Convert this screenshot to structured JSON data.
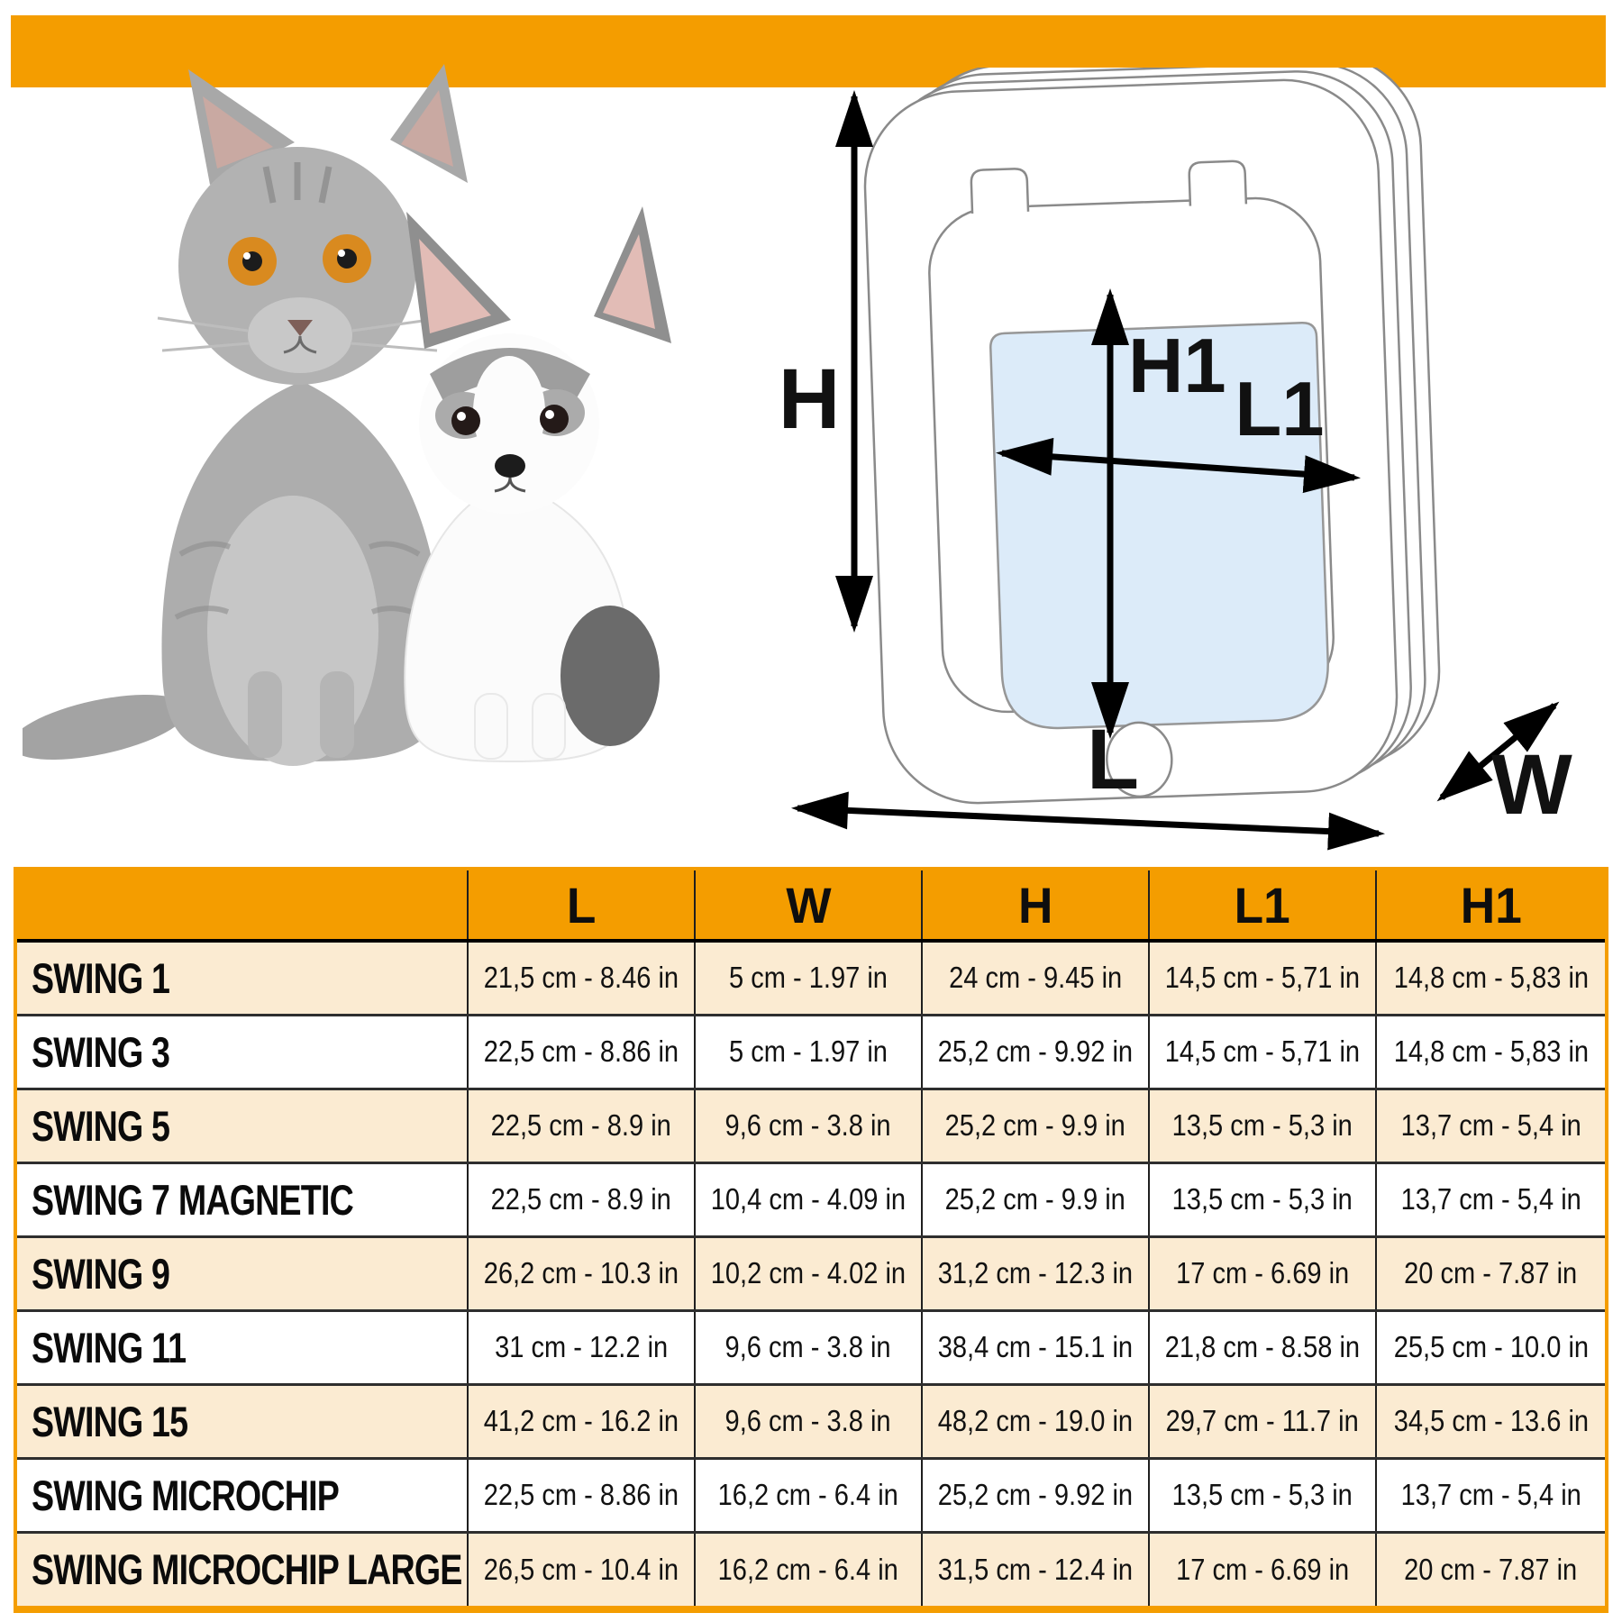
{
  "colors": {
    "accent_orange": "#F49D00",
    "row_peach": "#FBEBD2",
    "flap_blue": "#DCEBF9",
    "outline_gray": "#8A8A8A"
  },
  "photo": {
    "subjects": [
      "gray-cat",
      "white-dog"
    ]
  },
  "diagram": {
    "h_label": "H",
    "h1_label": "H1",
    "l1_label": "L1",
    "l_label": "L",
    "w_label": "W"
  },
  "table": {
    "headers": [
      "",
      "L",
      "W",
      "H",
      "L1",
      "H1"
    ],
    "rows": [
      {
        "label": "SWING 1",
        "values": [
          "21,5 cm - 8.46 in",
          "5 cm - 1.97 in",
          "24 cm - 9.45 in",
          "14,5 cm - 5,71 in",
          "14,8 cm - 5,83 in"
        ]
      },
      {
        "label": "SWING 3",
        "values": [
          "22,5 cm - 8.86 in",
          "5 cm - 1.97 in",
          "25,2 cm - 9.92 in",
          "14,5 cm - 5,71 in",
          "14,8 cm - 5,83 in"
        ]
      },
      {
        "label": "SWING 5",
        "values": [
          "22,5 cm - 8.9 in",
          "9,6 cm - 3.8 in",
          "25,2 cm - 9.9 in",
          "13,5 cm - 5,3 in",
          "13,7 cm - 5,4 in"
        ]
      },
      {
        "label": "SWING 7 MAGNETIC",
        "values": [
          "22,5 cm - 8.9 in",
          "10,4 cm - 4.09 in",
          "25,2 cm - 9.9 in",
          "13,5 cm - 5,3 in",
          "13,7 cm - 5,4 in"
        ]
      },
      {
        "label": "SWING 9",
        "values": [
          "26,2 cm - 10.3 in",
          "10,2 cm - 4.02 in",
          "31,2 cm - 12.3 in",
          "17 cm - 6.69 in",
          "20 cm - 7.87 in"
        ]
      },
      {
        "label": "SWING 11",
        "values": [
          "31 cm - 12.2 in",
          "9,6 cm - 3.8 in",
          "38,4 cm - 15.1 in",
          "21,8 cm - 8.58 in",
          "25,5 cm - 10.0 in"
        ]
      },
      {
        "label": "SWING 15",
        "values": [
          "41,2 cm - 16.2 in",
          "9,6 cm - 3.8 in",
          "48,2 cm - 19.0 in",
          "29,7 cm - 11.7 in",
          "34,5 cm - 13.6 in"
        ]
      },
      {
        "label": "SWING MICROCHIP",
        "values": [
          "22,5 cm - 8.86 in",
          "16,2 cm - 6.4 in",
          "25,2 cm - 9.92 in",
          "13,5 cm - 5,3 in",
          "13,7 cm - 5,4 in"
        ]
      },
      {
        "label": "SWING MICROCHIP LARGE",
        "values": [
          "26,5 cm - 10.4 in",
          "16,2 cm - 6.4 in",
          "31,5 cm - 12.4 in",
          "17 cm - 6.69 in",
          "20 cm - 7.87 in"
        ]
      }
    ]
  }
}
